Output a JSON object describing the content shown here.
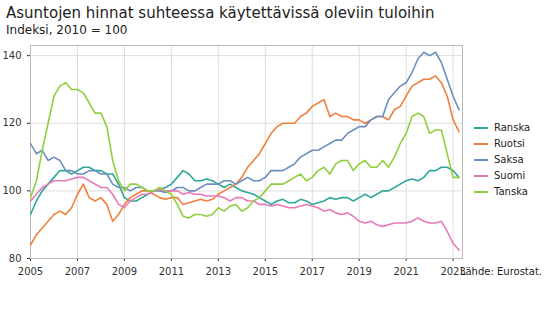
{
  "chart_data": {
    "type": "line",
    "title": "Asuntojen hinnat suhteessa käytettävissä oleviin tuloihin",
    "subtitle": "Indeksi, 2010 = 100",
    "caption": "Lähde: Eurostat.",
    "x": [
      2005,
      2005.25,
      2005.5,
      2005.75,
      2006,
      2006.25,
      2006.5,
      2006.75,
      2007,
      2007.25,
      2007.5,
      2007.75,
      2008,
      2008.25,
      2008.5,
      2008.75,
      2009,
      2009.25,
      2009.5,
      2009.75,
      2010,
      2010.25,
      2010.5,
      2010.75,
      2011,
      2011.25,
      2011.5,
      2011.75,
      2012,
      2012.25,
      2012.5,
      2012.75,
      2013,
      2013.25,
      2013.5,
      2013.75,
      2014,
      2014.25,
      2014.5,
      2014.75,
      2015,
      2015.25,
      2015.5,
      2015.75,
      2016,
      2016.25,
      2016.5,
      2016.75,
      2017,
      2017.25,
      2017.5,
      2017.75,
      2018,
      2018.25,
      2018.5,
      2018.75,
      2019,
      2019.25,
      2019.5,
      2019.75,
      2020,
      2020.25,
      2020.5,
      2020.75,
      2021,
      2021.25,
      2021.5,
      2021.75,
      2022,
      2022.25,
      2022.5,
      2022.75,
      2023,
      2023.25
    ],
    "series": [
      {
        "name": "Ranska",
        "color": "#2ca89a",
        "values": [
          93,
          97,
          100,
          102,
          104,
          106,
          106,
          105,
          106,
          107,
          107,
          106,
          106,
          105,
          105,
          102,
          98,
          97,
          97,
          98,
          99,
          100,
          100.5,
          101,
          102,
          104,
          106,
          105,
          103,
          103,
          103.5,
          103,
          102,
          101,
          102,
          101,
          100,
          99.5,
          99,
          98,
          97,
          96,
          97,
          97.5,
          96.5,
          96.5,
          97.5,
          97,
          96,
          96.5,
          97,
          98,
          97.5,
          98,
          98,
          97,
          98,
          99,
          98,
          99,
          100,
          100,
          101,
          102,
          103,
          103.5,
          103,
          104,
          106,
          106,
          107,
          107,
          106,
          104
        ]
      },
      {
        "name": "Ruotsi",
        "color": "#f07f3c",
        "values": [
          84,
          87,
          89,
          91,
          93,
          94,
          93,
          95,
          99,
          102,
          98,
          97,
          98,
          96,
          91,
          93,
          96,
          98,
          99,
          100,
          100,
          99,
          98,
          97.5,
          98,
          98,
          96,
          96.5,
          97,
          97.5,
          97,
          97.5,
          99,
          100,
          101,
          102,
          104,
          107,
          109,
          111,
          114,
          117,
          119,
          120,
          120,
          120,
          122,
          123,
          125,
          126,
          127,
          122,
          123,
          122,
          122,
          121,
          121,
          120,
          121,
          122,
          122,
          121,
          124,
          125,
          128,
          131,
          132,
          133,
          133,
          134,
          132,
          128,
          121,
          117.5
        ]
      },
      {
        "name": "Saksa",
        "color": "#6c8ebf",
        "values": [
          114,
          111,
          112,
          109,
          110,
          109,
          106,
          106,
          105,
          105,
          106,
          106,
          105,
          105,
          102,
          101,
          101,
          100,
          101,
          101,
          100,
          100,
          100,
          99.5,
          100,
          101,
          101,
          100,
          100,
          101,
          102,
          102,
          102,
          103,
          103,
          102,
          103,
          104,
          103,
          103,
          104,
          106,
          106,
          106,
          107,
          108,
          110,
          111,
          112,
          112,
          113,
          114,
          115,
          115,
          117,
          118,
          119,
          119,
          121,
          122,
          122,
          127,
          129,
          131,
          132,
          135,
          139,
          141,
          140,
          141,
          138,
          133,
          128,
          124
        ]
      },
      {
        "name": "Suomi",
        "color": "#e879b8",
        "values": [
          97,
          99,
          101,
          102,
          103,
          103,
          103,
          103.5,
          104,
          104,
          103,
          102,
          101,
          101,
          99,
          96,
          95,
          97,
          98,
          99,
          99,
          100,
          100.5,
          100,
          100,
          100,
          99,
          99.5,
          99,
          99,
          98.5,
          98.5,
          98.5,
          98,
          97,
          98,
          98,
          97,
          97,
          96,
          96,
          95.5,
          96,
          95.5,
          95,
          95,
          95.5,
          96,
          95.5,
          95,
          94,
          94.5,
          93.5,
          93,
          93.5,
          92.5,
          91,
          90.5,
          91,
          90,
          89.5,
          90,
          90.5,
          90.5,
          90.5,
          91,
          92,
          91,
          90.5,
          90.5,
          91,
          88,
          84.5,
          82.5
        ]
      },
      {
        "name": "Tanska",
        "color": "#8fcf3c",
        "values": [
          98,
          103,
          112,
          120,
          128,
          131,
          132,
          130,
          130,
          129,
          126,
          123,
          123,
          119,
          109,
          103,
          100,
          102,
          102,
          101,
          100,
          100,
          101,
          100,
          99,
          96,
          92.5,
          92,
          93,
          93,
          92.5,
          93,
          95,
          94,
          95.5,
          96,
          94,
          95,
          97,
          98,
          100,
          102,
          102,
          102,
          103,
          104,
          105,
          103,
          104,
          106,
          107,
          105,
          108,
          109,
          109,
          106,
          108,
          109,
          107,
          107,
          109,
          107,
          110,
          114,
          117,
          122,
          123,
          122,
          117,
          118,
          118,
          111,
          104,
          104
        ]
      }
    ],
    "xlim": [
      2005,
      2023.4
    ],
    "xticks": [
      2005,
      2007,
      2009,
      2011,
      2013,
      2015,
      2017,
      2019,
      2021,
      2023
    ],
    "ylim": [
      80,
      143
    ],
    "yticks": [
      80,
      100,
      120,
      140
    ],
    "grid": true,
    "legend": "right"
  }
}
